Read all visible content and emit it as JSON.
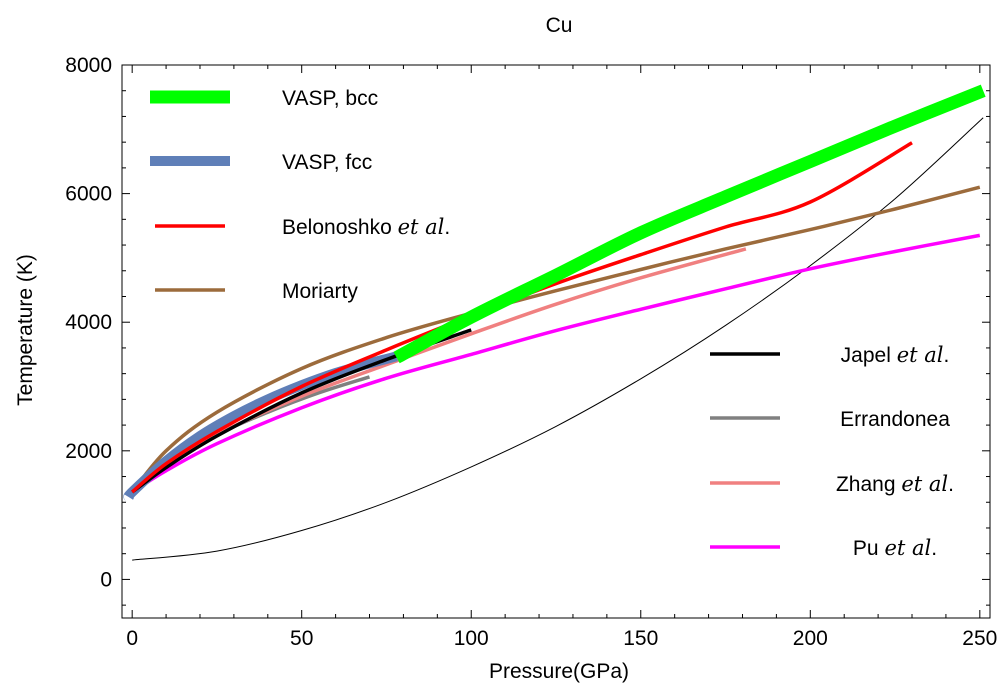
{
  "chart_data": {
    "type": "line",
    "title": "Cu",
    "xlabel": "Pressure(GPa)",
    "ylabel": "Temperature (K)",
    "xlim": [
      -3,
      253
    ],
    "ylim": [
      -600,
      8000
    ],
    "xticks": [
      0,
      50,
      100,
      150,
      200,
      250
    ],
    "xtick_labels": [
      "0",
      "50",
      "100",
      "150",
      "200",
      "250"
    ],
    "yticks": [
      0,
      2000,
      4000,
      6000,
      8000
    ],
    "ytick_labels": [
      "0",
      "2000",
      "4000",
      "6000",
      "8000"
    ],
    "grid": false,
    "legend_placement": [
      "top-left",
      "right"
    ],
    "series": [
      {
        "name": "VASP, bcc",
        "name_parts": [
          {
            "t": "VASP, bcc"
          }
        ],
        "color": "#00ff00",
        "width": 13,
        "x": [
          78,
          100,
          125,
          150,
          175,
          200,
          225,
          251
        ],
        "y": [
          3450,
          4080,
          4730,
          5390,
          5950,
          6500,
          7050,
          7600
        ]
      },
      {
        "name": "VASP, fcc",
        "name_parts": [
          {
            "t": "VASP, fcc"
          }
        ],
        "color": "#5f7fb8",
        "width": 10,
        "x": [
          -1,
          0,
          10,
          20,
          30,
          40,
          50,
          60,
          70,
          78
        ],
        "y": [
          1280,
          1360,
          1840,
          2230,
          2540,
          2800,
          3020,
          3210,
          3360,
          3470
        ]
      },
      {
        "name": "Belonoshko et al.",
        "name_parts": [
          {
            "t": "Belonoshko "
          },
          {
            "t": "et al",
            "i": true
          },
          {
            "t": "."
          }
        ],
        "color": "#ff0000",
        "width": 3.5,
        "x": [
          0,
          10,
          25,
          50,
          75,
          100,
          125,
          150,
          175,
          200,
          230
        ],
        "y": [
          1360,
          1800,
          2300,
          3000,
          3570,
          4100,
          4600,
          5050,
          5480,
          5870,
          6790
        ]
      },
      {
        "name": "Moriarty",
        "name_parts": [
          {
            "t": "Moriarty"
          }
        ],
        "color": "#9c6b3c",
        "width": 3.5,
        "x": [
          0,
          10,
          25,
          50,
          75,
          100,
          125,
          150,
          175,
          200,
          225,
          250
        ],
        "y": [
          1360,
          2000,
          2600,
          3280,
          3760,
          4140,
          4490,
          4820,
          5140,
          5440,
          5760,
          6100
        ]
      },
      {
        "name": "Japel et al.",
        "name_parts": [
          {
            "t": "Japel "
          },
          {
            "t": "et al",
            "i": true
          },
          {
            "t": "."
          }
        ],
        "color": "#000000",
        "width": 3.5,
        "x": [
          0,
          10,
          25,
          50,
          75,
          100
        ],
        "y": [
          1360,
          1740,
          2230,
          2900,
          3420,
          3880
        ]
      },
      {
        "name": "Errandonea",
        "name_parts": [
          {
            "t": "Errandonea"
          }
        ],
        "color": "#808080",
        "width": 3.5,
        "x": [
          0,
          10,
          25,
          40,
          55,
          70
        ],
        "y": [
          1360,
          1780,
          2250,
          2600,
          2900,
          3150
        ]
      },
      {
        "name": "Zhang et al.",
        "name_parts": [
          {
            "t": "Zhang "
          },
          {
            "t": "et al",
            "i": true
          },
          {
            "t": "."
          }
        ],
        "color": "#f08080",
        "width": 3.5,
        "x": [
          0,
          10,
          25,
          50,
          75,
          100,
          125,
          150,
          181
        ],
        "y": [
          1360,
          1760,
          2250,
          2850,
          3340,
          3820,
          4280,
          4690,
          5140
        ]
      },
      {
        "name": "Pu et al.",
        "name_parts": [
          {
            "t": "Pu "
          },
          {
            "t": "et al",
            "i": true
          },
          {
            "t": "."
          }
        ],
        "color": "#ff00ff",
        "width": 3.5,
        "x": [
          0,
          10,
          25,
          50,
          75,
          100,
          125,
          150,
          175,
          200,
          225,
          250
        ],
        "y": [
          1360,
          1690,
          2110,
          2670,
          3130,
          3500,
          3870,
          4200,
          4520,
          4830,
          5100,
          5350
        ]
      },
      {
        "name": "",
        "name_parts": [],
        "color": "#000000",
        "width": 1,
        "x": [
          0,
          25,
          50,
          75,
          100,
          125,
          150,
          175,
          200,
          225,
          251
        ],
        "y": [
          300,
          440,
          760,
          1200,
          1750,
          2380,
          3120,
          3950,
          4880,
          5920,
          7180
        ]
      }
    ]
  }
}
